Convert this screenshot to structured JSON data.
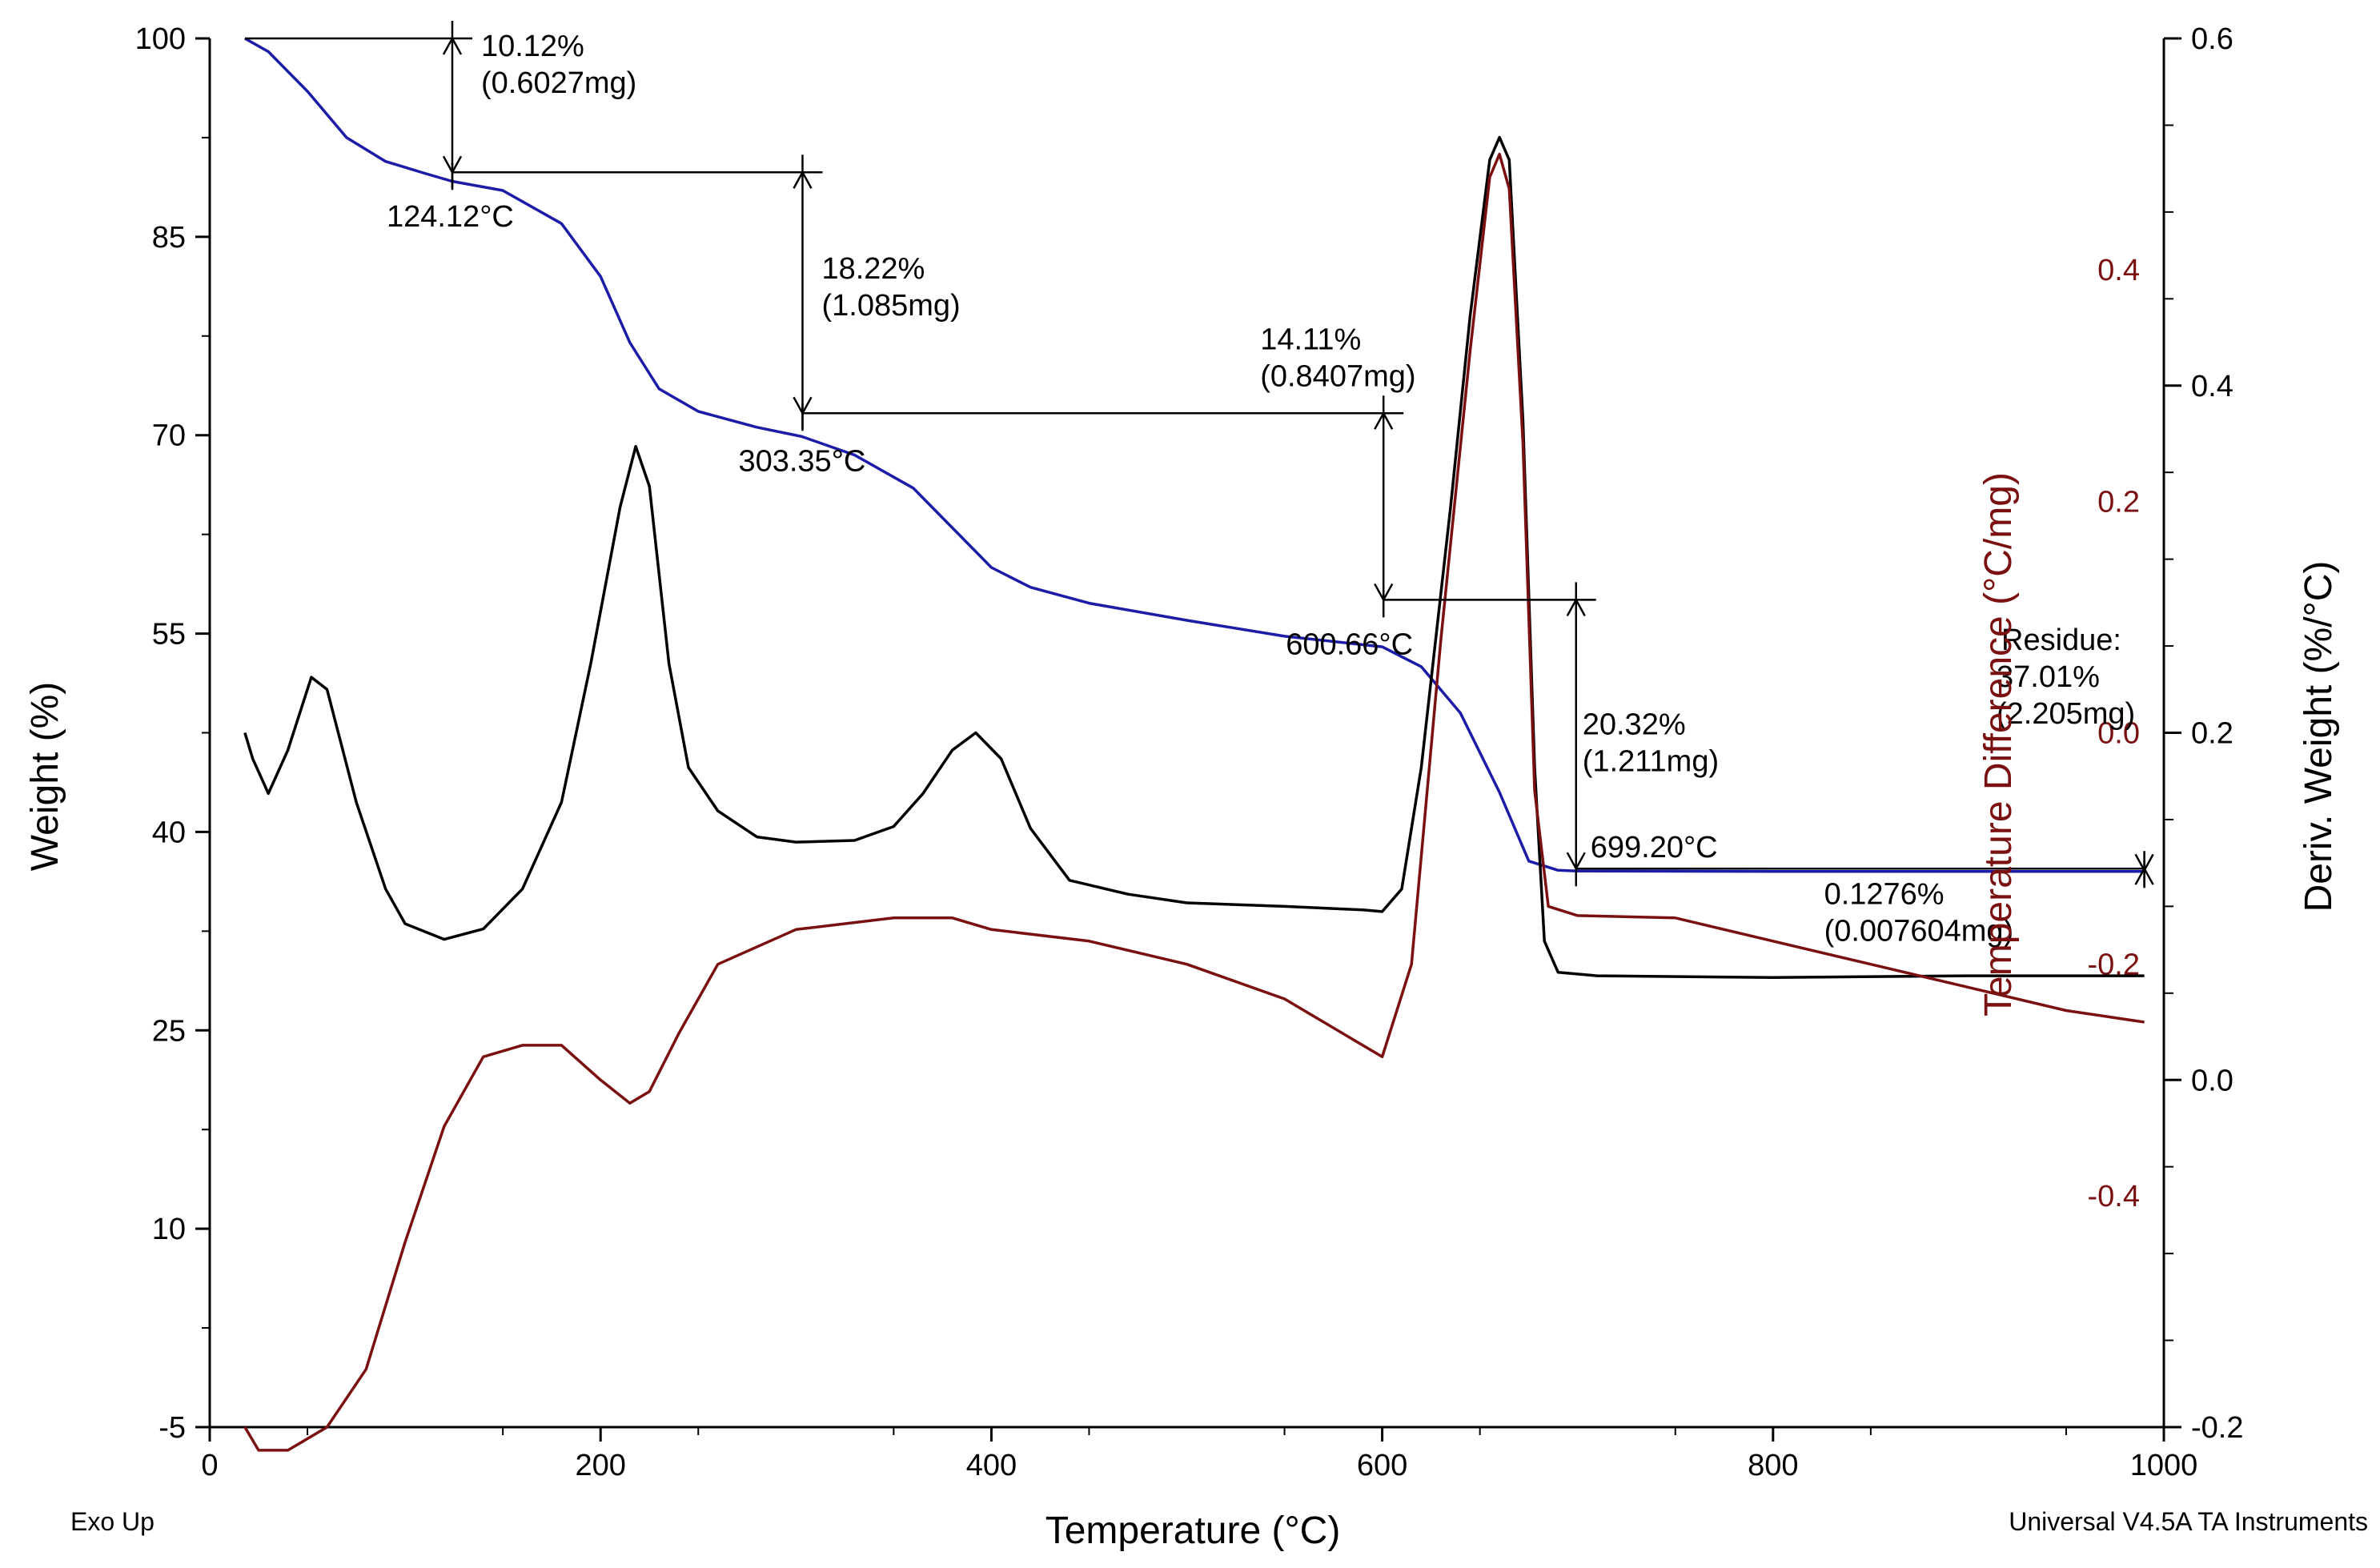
{
  "chart_data": {
    "type": "line",
    "footer_left": "Exo Up",
    "footer_right": "Universal V4.5A TA Instruments",
    "x_axis": {
      "label": "Temperature (°C)",
      "range": [
        0,
        1000
      ],
      "ticks": [
        "0",
        "200",
        "400",
        "600",
        "800",
        "1000"
      ]
    },
    "y_axes": {
      "weight": {
        "label": "Weight (%)",
        "range": [
          -5,
          100
        ],
        "ticks": [
          "-5",
          "10",
          "25",
          "40",
          "55",
          "70",
          "85",
          "100"
        ]
      },
      "temp_difference": {
        "label": "Temperature Difference (°C/mg)",
        "color": "#7a1010",
        "range": [
          -0.6,
          0.6
        ],
        "ticks": [
          "0.4",
          "0.2",
          "0.0",
          "-0.2",
          "-0.4"
        ]
      },
      "deriv_weight": {
        "label": "Deriv. Weight (%/°C)",
        "range": [
          -0.2,
          0.6
        ],
        "ticks": [
          "0.6",
          "0.4",
          "0.2",
          "0.0",
          "-0.2"
        ]
      }
    },
    "series": [
      {
        "name": "Weight",
        "axis": "weight",
        "color": "#1c1ca8",
        "points": [
          [
            18,
            100
          ],
          [
            30,
            99
          ],
          [
            50,
            96
          ],
          [
            70,
            92.5
          ],
          [
            90,
            90.7
          ],
          [
            110,
            89.8
          ],
          [
            124,
            89.2
          ],
          [
            150,
            88.5
          ],
          [
            180,
            86
          ],
          [
            200,
            82
          ],
          [
            215,
            77
          ],
          [
            230,
            73.5
          ],
          [
            250,
            71.8
          ],
          [
            280,
            70.6
          ],
          [
            303,
            69.9
          ],
          [
            330,
            68.5
          ],
          [
            360,
            66
          ],
          [
            380,
            63
          ],
          [
            400,
            60
          ],
          [
            420,
            58.5
          ],
          [
            450,
            57.3
          ],
          [
            500,
            56
          ],
          [
            550,
            54.8
          ],
          [
            600,
            54
          ],
          [
            620,
            52.5
          ],
          [
            640,
            49
          ],
          [
            660,
            43
          ],
          [
            675,
            37.8
          ],
          [
            690,
            37.1
          ],
          [
            700,
            37.05
          ],
          [
            800,
            37.02
          ],
          [
            900,
            37.01
          ],
          [
            990,
            37.01
          ]
        ]
      },
      {
        "name": "Deriv. Weight",
        "axis": "deriv_weight",
        "color": "#000000",
        "points": [
          [
            18,
            0.2
          ],
          [
            22,
            0.185
          ],
          [
            26,
            0.175
          ],
          [
            30,
            0.165
          ],
          [
            40,
            0.19
          ],
          [
            52,
            0.232
          ],
          [
            60,
            0.225
          ],
          [
            75,
            0.16
          ],
          [
            90,
            0.11
          ],
          [
            100,
            0.09
          ],
          [
            120,
            0.081
          ],
          [
            140,
            0.087
          ],
          [
            160,
            0.11
          ],
          [
            180,
            0.16
          ],
          [
            195,
            0.24
          ],
          [
            210,
            0.33
          ],
          [
            218,
            0.365
          ],
          [
            225,
            0.342
          ],
          [
            235,
            0.24
          ],
          [
            245,
            0.18
          ],
          [
            260,
            0.155
          ],
          [
            280,
            0.14
          ],
          [
            300,
            0.137
          ],
          [
            330,
            0.138
          ],
          [
            350,
            0.146
          ],
          [
            365,
            0.165
          ],
          [
            380,
            0.19
          ],
          [
            392,
            0.2
          ],
          [
            405,
            0.185
          ],
          [
            420,
            0.145
          ],
          [
            440,
            0.115
          ],
          [
            470,
            0.107
          ],
          [
            500,
            0.102
          ],
          [
            550,
            0.1
          ],
          [
            590,
            0.098
          ],
          [
            600,
            0.097
          ],
          [
            610,
            0.11
          ],
          [
            620,
            0.18
          ],
          [
            635,
            0.33
          ],
          [
            645,
            0.44
          ],
          [
            655,
            0.53
          ],
          [
            660,
            0.543
          ],
          [
            665,
            0.53
          ],
          [
            672,
            0.38
          ],
          [
            678,
            0.18
          ],
          [
            683,
            0.08
          ],
          [
            690,
            0.062
          ],
          [
            710,
            0.06
          ],
          [
            800,
            0.059
          ],
          [
            900,
            0.06
          ],
          [
            990,
            0.06
          ]
        ]
      },
      {
        "name": "Temperature Difference",
        "axis": "temp_difference",
        "color": "#7a1010",
        "points": [
          [
            18,
            -0.6
          ],
          [
            25,
            -0.62
          ],
          [
            40,
            -0.62
          ],
          [
            60,
            -0.6
          ],
          [
            80,
            -0.55
          ],
          [
            100,
            -0.44
          ],
          [
            120,
            -0.34
          ],
          [
            140,
            -0.28
          ],
          [
            160,
            -0.27
          ],
          [
            180,
            -0.27
          ],
          [
            200,
            -0.3
          ],
          [
            215,
            -0.32
          ],
          [
            225,
            -0.31
          ],
          [
            240,
            -0.26
          ],
          [
            260,
            -0.2
          ],
          [
            300,
            -0.17
          ],
          [
            350,
            -0.16
          ],
          [
            380,
            -0.16
          ],
          [
            400,
            -0.17
          ],
          [
            450,
            -0.18
          ],
          [
            500,
            -0.2
          ],
          [
            550,
            -0.23
          ],
          [
            590,
            -0.27
          ],
          [
            600,
            -0.28
          ],
          [
            615,
            -0.2
          ],
          [
            630,
            0.08
          ],
          [
            645,
            0.33
          ],
          [
            655,
            0.48
          ],
          [
            660,
            0.5
          ],
          [
            665,
            0.47
          ],
          [
            672,
            0.25
          ],
          [
            678,
            -0.05
          ],
          [
            685,
            -0.15
          ],
          [
            700,
            -0.158
          ],
          [
            750,
            -0.16
          ],
          [
            800,
            -0.18
          ],
          [
            850,
            -0.2
          ],
          [
            900,
            -0.22
          ],
          [
            950,
            -0.24
          ],
          [
            990,
            -0.25
          ]
        ]
      }
    ],
    "steps": [
      {
        "start_temp": 18,
        "end_temp": 124.12,
        "start_weight": 100,
        "end_weight": 89.88,
        "percent": "10.12%",
        "mass": "(0.6027mg)",
        "temp_label": "124.12°C"
      },
      {
        "start_temp": 124.12,
        "end_temp": 303.35,
        "start_weight": 89.88,
        "end_weight": 71.66,
        "percent": "18.22%",
        "mass": "(1.085mg)",
        "temp_label": "303.35°C"
      },
      {
        "start_temp": 303.35,
        "end_temp": 600.66,
        "start_weight": 71.66,
        "end_weight": 57.55,
        "percent": "14.11%",
        "mass": "(0.8407mg)",
        "temp_label": "600.66°C"
      },
      {
        "start_temp": 600.66,
        "end_temp": 699.2,
        "start_weight": 57.55,
        "end_weight": 37.23,
        "percent": "20.32%",
        "mass": "(1.211mg)",
        "temp_label": "699.20°C"
      },
      {
        "start_temp": 699.2,
        "end_temp": 990,
        "start_weight": 37.23,
        "end_weight": 37.1,
        "percent": "0.1276%",
        "mass": "(0.007604mg)",
        "temp_label": ""
      }
    ],
    "residue": {
      "label": "Residue:",
      "percent": "37.01%",
      "mass": "(2.205mg)"
    }
  }
}
